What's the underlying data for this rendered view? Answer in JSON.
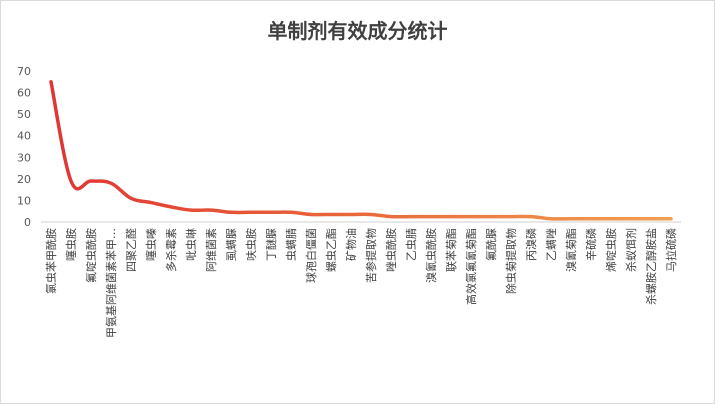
{
  "chart_data": {
    "type": "line",
    "title": "单制剂有效成分统计",
    "xlabel": "",
    "ylabel": "",
    "ylim": [
      0,
      70
    ],
    "yticks": [
      0,
      10,
      20,
      30,
      40,
      50,
      60,
      70
    ],
    "grid": false,
    "legend": "none",
    "colors": {
      "start": "#e03535",
      "end": "#f0a050"
    },
    "categories": [
      "氯虫苯甲酰胺",
      "噻虫胺",
      "氟啶虫酰胺",
      "甲氨基阿维菌素苯甲…",
      "四聚乙醛",
      "噻虫嗪",
      "多杀霉素",
      "吡虫啉",
      "阿维菌素",
      "虱螨脲",
      "呋虫胺",
      "丁醚脲",
      "虫螨腈",
      "球孢白僵菌",
      "螺虫乙酯",
      "矿物油",
      "苦参提取物",
      "唑虫酰胺",
      "乙虫腈",
      "溴氰虫酰胺",
      "联苯菊酯",
      "高效氯氟氰菊酯",
      "氟酰脲",
      "除虫菊提取物",
      "丙溴磷",
      "乙螨唑",
      "溴氰菊酯",
      "辛硫磷",
      "烯啶虫胺",
      "杀蚁饵剂",
      "杀螺胺乙醇胺盐",
      "马拉硫磷"
    ],
    "values": [
      65,
      19,
      19,
      18,
      11,
      9,
      7,
      5.5,
      5.5,
      4.5,
      4.5,
      4.5,
      4.5,
      3.5,
      3.5,
      3.5,
      3.5,
      2.5,
      2.5,
      2.5,
      2.5,
      2.5,
      2.5,
      2.5,
      2.5,
      1.5,
      1.5,
      1.5,
      1.5,
      1.5,
      1.5,
      1.5
    ]
  }
}
